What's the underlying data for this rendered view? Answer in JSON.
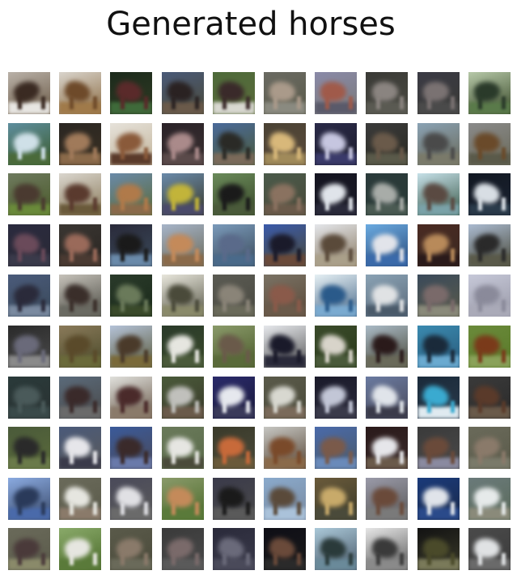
{
  "figure": {
    "title": "Generated horses"
  },
  "grid": {
    "rows": 10,
    "cols": 10
  },
  "tiles": [
    [
      "#b9b1a8",
      "#3a2a22",
      "#e8e6e2",
      "#6b5a46"
    ],
    [
      "#d9d4cc",
      "#6e4a2a",
      "#a07a4a",
      "#8a6a40"
    ],
    [
      "#1c2a1c",
      "#5a2a2a",
      "#3f6a3a",
      "#2e3a22"
    ],
    [
      "#4a5a78",
      "#2a2222",
      "#6a5a4a",
      "#4a4a3a"
    ],
    [
      "#4e6a3a",
      "#3a2a2a",
      "#d8d8d0",
      "#5a6a3a"
    ],
    [
      "#6a6a62",
      "#aa9a8a",
      "#8a8a80",
      "#5a5a4a"
    ],
    [
      "#8a8aa8",
      "#a05a4a",
      "#5a5a6a",
      "#7a7a7a"
    ],
    [
      "#3a3a36",
      "#8a8480",
      "#5a5a52",
      "#4a4a42"
    ],
    [
      "#3a3a44",
      "#7a7272",
      "#4a4a4a",
      "#3a3a36"
    ],
    [
      "#b6c8a8",
      "#2a3a2a",
      "#5a7a4a",
      "#3a4a2a"
    ],
    [
      "#5e8e9e",
      "#cfe0e8",
      "#4a6a3a",
      "#3a5a2a"
    ],
    [
      "#2a2622",
      "#a07a5a",
      "#8a6a4a",
      "#3a3022"
    ],
    [
      "#e6e2da",
      "#8a5a3a",
      "#5a3a2a",
      "#c2b49a"
    ],
    [
      "#2a2228",
      "#aa8a8a",
      "#5a4a4a",
      "#3a3030"
    ],
    [
      "#4a6a9a",
      "#2a2a26",
      "#7a6a5a",
      "#4a5a3a"
    ],
    [
      "#4a4234",
      "#d8b87a",
      "#a08a5a",
      "#5a4a3a"
    ],
    [
      "#2a2a48",
      "#c6c6e0",
      "#3a3a6a",
      "#1a1a2a"
    ],
    [
      "#3a3a3a",
      "#6a5a4a",
      "#5a5a4a",
      "#2a2a22"
    ],
    [
      "#8aa2b4",
      "#4a4a4a",
      "#7a7a6a",
      "#6a6a5a"
    ],
    [
      "#8a8a8a",
      "#6a4a2a",
      "#5a5a4a",
      "#6a6a5a"
    ],
    [
      "#6e7a5e",
      "#4a3a30",
      "#6a8a3a",
      "#4a5a2a"
    ],
    [
      "#dad6ce",
      "#5a3a2e",
      "#6a5a3a",
      "#8a7a5a"
    ],
    [
      "#6a8aa8",
      "#b07a4a",
      "#8a6a4a",
      "#5a6a3a"
    ],
    [
      "#6a8aaa",
      "#c2b43a",
      "#4a4a6a",
      "#3a3a2a"
    ],
    [
      "#6a8a5a",
      "#1a1a1a",
      "#4a5a3a",
      "#3a4a2a"
    ],
    [
      "#4a5a4a",
      "#8a7260",
      "#6a5a4a",
      "#4a4a3a"
    ],
    [
      "#141420",
      "#e0e4ea",
      "#2a2a3a",
      "#1a1a26"
    ],
    [
      "#2a3a3a",
      "#a8aca8",
      "#4a5a52",
      "#2a3a36"
    ],
    [
      "#c6e0e8",
      "#5a4a42",
      "#7aa2a8",
      "#3a5a4a"
    ],
    [
      "#121822",
      "#d8dee4",
      "#2a3a4a",
      "#1a2230"
    ],
    [
      "#2a2a3e",
      "#6a4a5a",
      "#3a3a4a",
      "#2a2a36"
    ],
    [
      "#3a3632",
      "#9a6a5a",
      "#4a3a32",
      "#2a2622"
    ],
    [
      "#2a2a3a",
      "#1a1a1a",
      "#6a8aaa",
      "#3a4a5a"
    ],
    [
      "#a6b4c8",
      "#c48a5a",
      "#8a6a4a",
      "#6a6a5a"
    ],
    [
      "#7a9aba",
      "#5a6a8a",
      "#4a6a8a",
      "#3a4a5a"
    ],
    [
      "#3a5aaa",
      "#1a1a2a",
      "#6a4a3a",
      "#4a4a3a"
    ],
    [
      "#e4e6ea",
      "#5a4a3a",
      "#aaa08a",
      "#8a7a62"
    ],
    [
      "#6aaae0",
      "#e2e4ea",
      "#3a6aaa",
      "#2a4a7a"
    ],
    [
      "#4a2a22",
      "#b88a5a",
      "#2a1a1a",
      "#3a2a22"
    ],
    [
      "#aabad0",
      "#2a2a2a",
      "#5a5a4a",
      "#4a4a3a"
    ],
    [
      "#4a5a7a",
      "#2a2a3a",
      "#7a8aa0",
      "#3a4a5a"
    ],
    [
      "#c6c2ba",
      "#3a2e2a",
      "#6a6a62",
      "#4a4a42"
    ],
    [
      "#2a3a2a",
      "#6a7a5a",
      "#3a4a2a",
      "#1a2a1a"
    ],
    [
      "#e8e6dc",
      "#4a4a3a",
      "#8a8a6a",
      "#5a5a4a"
    ],
    [
      "#5a5a52",
      "#8a8478",
      "#6a6a5a",
      "#4a4a42"
    ],
    [
      "#7a7264",
      "#8a5a4a",
      "#6a5a4a",
      "#5a4a3a"
    ],
    [
      "#e6f0f4",
      "#2a5a8a",
      "#7aaad0",
      "#4a6a8a"
    ],
    [
      "#8aa2b4",
      "#e0e2e4",
      "#4a5a6a",
      "#5a6a7a"
    ],
    [
      "#3a4a5a",
      "#7a6a6a",
      "#8a8a7a",
      "#5a5a4a"
    ],
    [
      "#c6c8d8",
      "#8a8a9a",
      "#aaaab8",
      "#9a9aa8"
    ],
    [
      "#2a2a2a",
      "#6a6a7a",
      "#8a8a8a",
      "#4a4a4a"
    ],
    [
      "#8a7a5a",
      "#5a4a2a",
      "#6a6a3a",
      "#4a4a2a"
    ],
    [
      "#b4c2d8",
      "#4a3a2a",
      "#7a6a3a",
      "#5a5a3a"
    ],
    [
      "#2a3a2a",
      "#e6e6e0",
      "#4a5a3a",
      "#3a4a2a"
    ],
    [
      "#8a9a6a",
      "#6a5a4a",
      "#5a6a3a",
      "#4a5a2a"
    ],
    [
      "#e6e8ec",
      "#1a1a2a",
      "#2a2a3a",
      "#5a5a5a"
    ],
    [
      "#3a4a2a",
      "#d8d4ca",
      "#4a5a3a",
      "#2a3a1a"
    ],
    [
      "#aabac6",
      "#2a1a1a",
      "#6a6a5a",
      "#4a4a3a"
    ],
    [
      "#3a8ab0",
      "#1a2a3a",
      "#6aaad0",
      "#2a5a7a"
    ],
    [
      "#6a8a3a",
      "#7a3a1a",
      "#8aa25a",
      "#5a7a2a"
    ],
    [
      "#2a3a3a",
      "#4a5a5a",
      "#3a4a4a",
      "#2a3232"
    ],
    [
      "#5a6a7a",
      "#3a2a2a",
      "#6a6a6a",
      "#4a4a4a"
    ],
    [
      "#e0e0dc",
      "#4a2a2a",
      "#8a7a6a",
      "#6a5a4a"
    ],
    [
      "#4a5a3a",
      "#c0c0bc",
      "#6a5a4a",
      "#3a3a2a"
    ],
    [
      "#2a2a6a",
      "#e6e8ee",
      "#3a3a5a",
      "#1a1a3a"
    ],
    [
      "#5a5a4a",
      "#d8d8d0",
      "#7a6a5a",
      "#4a4a3a"
    ],
    [
      "#1a1a2a",
      "#c2c6d6",
      "#3a3a4a",
      "#2a2a3a"
    ],
    [
      "#6a7aa0",
      "#e0e4ea",
      "#3a3a4a",
      "#4a4a5a"
    ],
    [
      "#1a2a3a",
      "#3aaad0",
      "#e0eaf0",
      "#2a3a4a"
    ],
    [
      "#3a3a3a",
      "#5a3a2a",
      "#6a5a4a",
      "#2a2a2a"
    ],
    [
      "#4a5a3a",
      "#2a2a2a",
      "#6a7a4a",
      "#5a6a3a"
    ],
    [
      "#4a5a7a",
      "#e6e6ea",
      "#3a3a4a",
      "#5a5a5a"
    ],
    [
      "#3a5a9a",
      "#3a2a2a",
      "#6a7aaa",
      "#4a4a5a"
    ],
    [
      "#6a7a5a",
      "#e6e6e2",
      "#4a4a3a",
      "#5a6a4a"
    ],
    [
      "#3a3a2a",
      "#c86a3a",
      "#6a5a3a",
      "#4a4a3a"
    ],
    [
      "#c6c6c2",
      "#7a4a2a",
      "#8a6a4a",
      "#5a4a3a"
    ],
    [
      "#4a6aaa",
      "#7a5a4a",
      "#6a8aba",
      "#4a5a6a"
    ],
    [
      "#2a1a1a",
      "#e6e6ea",
      "#6a5a4a",
      "#3a2a2a"
    ],
    [
      "#3a3a3a",
      "#6a4a3a",
      "#8a8aa0",
      "#4a4a4a"
    ],
    [
      "#6a6a5a",
      "#8a7a6a",
      "#7a7a6a",
      "#5a5a4a"
    ],
    [
      "#8aaae0",
      "#2a3a5a",
      "#4a6aaa",
      "#3a4a6a"
    ],
    [
      "#6a6a5a",
      "#e6e6e0",
      "#8a7a6a",
      "#5a5a4a"
    ],
    [
      "#4a4a5a",
      "#e0e0e4",
      "#6a6a6a",
      "#5a5a5a"
    ],
    [
      "#8a9a6a",
      "#c48a5a",
      "#5a7a3a",
      "#4a6a2a"
    ],
    [
      "#3a3a4a",
      "#1a1a1a",
      "#5a5a5a",
      "#4a4a4a"
    ],
    [
      "#8aaacc",
      "#5a4a3a",
      "#aac2da",
      "#7a8aa0"
    ],
    [
      "#6a5a3a",
      "#c8aa6a",
      "#4a4a3a",
      "#3a3a2a"
    ],
    [
      "#9a9aa8",
      "#6a4a3a",
      "#7a7a7a",
      "#5a5a5a"
    ],
    [
      "#1a3a7a",
      "#e0e4ea",
      "#2a4a8a",
      "#1a2a4a"
    ],
    [
      "#6a7a7a",
      "#e6eaea",
      "#8a8a7a",
      "#5a6a5a"
    ],
    [
      "#6a6a5a",
      "#4a3a3a",
      "#8a8a6a",
      "#5a5a4a"
    ],
    [
      "#8aaa6a",
      "#e6e6e0",
      "#5a7a3a",
      "#4a6a2a"
    ],
    [
      "#5a5a4a",
      "#8a7a6a",
      "#6a6a5a",
      "#4a4a3a"
    ],
    [
      "#3a3a3a",
      "#7a6a6a",
      "#5a5a5a",
      "#4a4a4a"
    ],
    [
      "#2a2a3a",
      "#6a6a7a",
      "#4a4a5a",
      "#3a3a4a"
    ],
    [
      "#0e0e16",
      "#6a4a3a",
      "#2a2a2a",
      "#1a1a1a"
    ],
    [
      "#aac8d8",
      "#2a3a3a",
      "#6a8a9a",
      "#4a5a6a"
    ],
    [
      "#e6e6e6",
      "#3a3a3a",
      "#8a8a8a",
      "#5a5a5a"
    ],
    [
      "#121212",
      "#4a4a2a",
      "#7a7a5a",
      "#3a3a2a"
    ],
    [
      "#4a4a4a",
      "#e0e2e4",
      "#6a6a6a",
      "#3a3a3a"
    ]
  ]
}
